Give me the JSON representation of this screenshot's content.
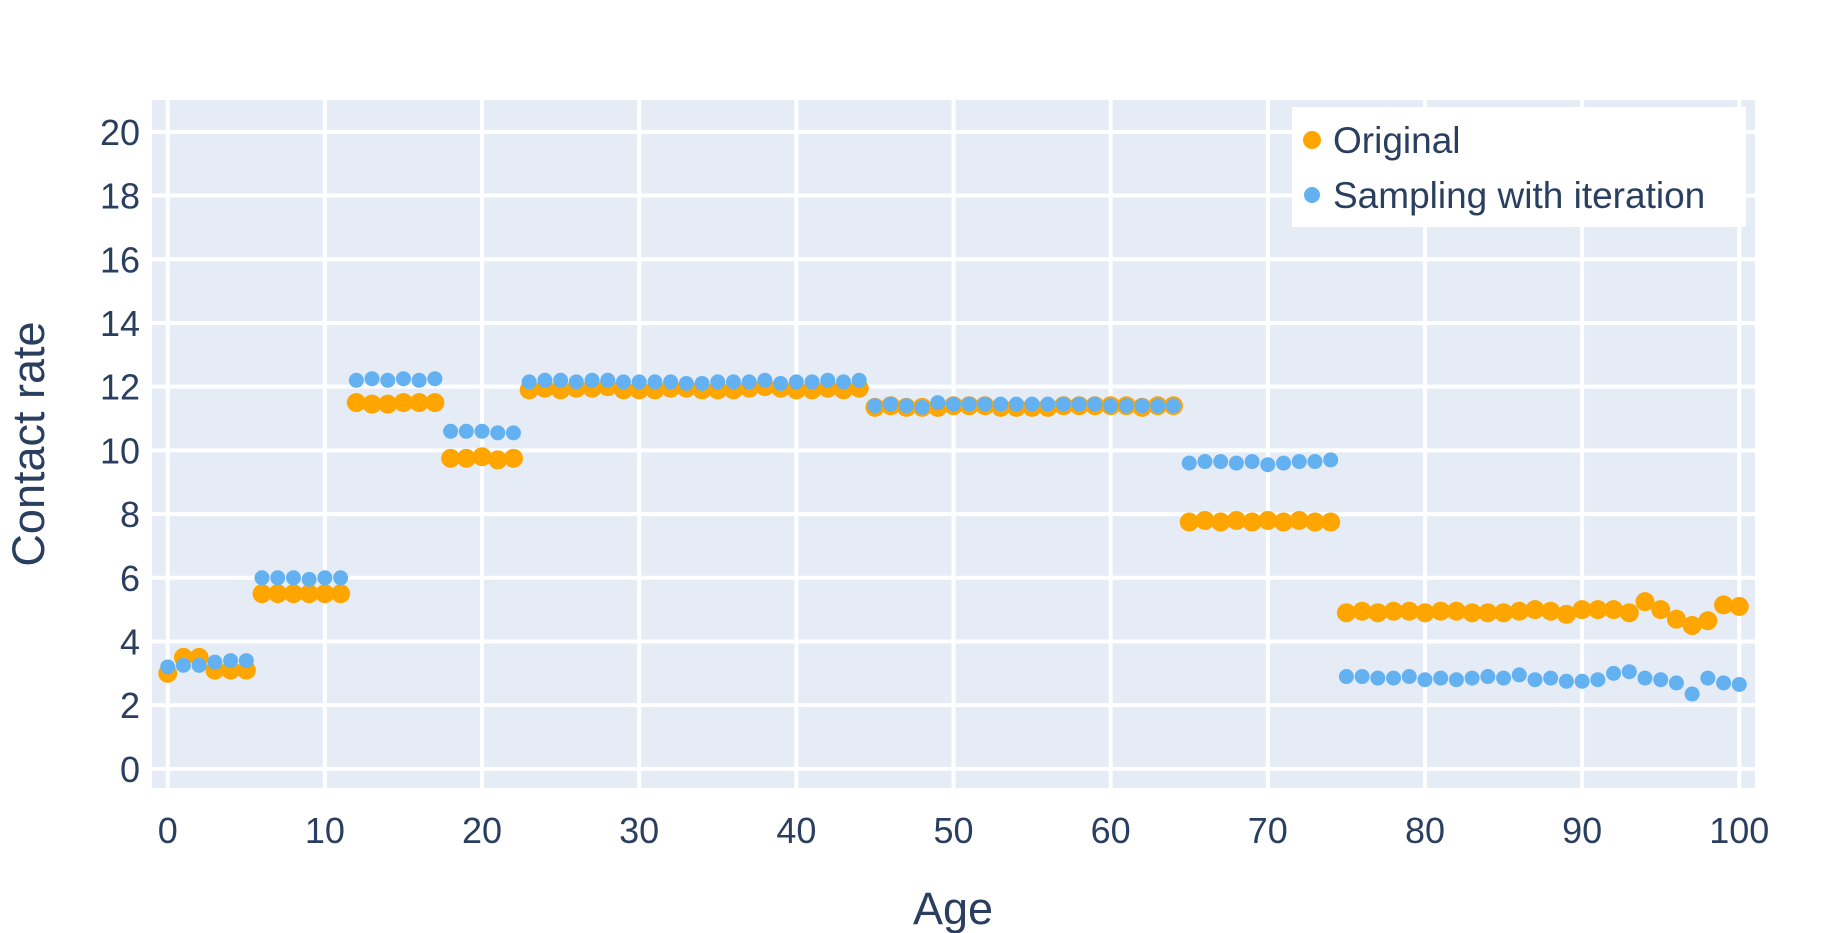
{
  "chart_data": {
    "type": "scatter",
    "xlabel": "Age",
    "ylabel": "Contact rate",
    "xlim": [
      -1,
      101
    ],
    "ylim": [
      -0.6,
      21
    ],
    "xticks": [
      0,
      10,
      20,
      30,
      40,
      50,
      60,
      70,
      80,
      90,
      100
    ],
    "yticks": [
      0,
      2,
      4,
      6,
      8,
      10,
      12,
      14,
      16,
      18,
      20
    ],
    "grid": true,
    "legend_position": "top-right",
    "colors": {
      "plot_bg": "#e5ecf6",
      "grid": "#ffffff",
      "text": "#2a3f5f"
    },
    "series": [
      {
        "name": "Original",
        "color": "#ffa500",
        "x": [
          0,
          1,
          2,
          3,
          4,
          5,
          6,
          7,
          8,
          9,
          10,
          11,
          12,
          13,
          14,
          15,
          16,
          17,
          18,
          19,
          20,
          21,
          22,
          23,
          24,
          25,
          26,
          27,
          28,
          29,
          30,
          31,
          32,
          33,
          34,
          35,
          36,
          37,
          38,
          39,
          40,
          41,
          42,
          43,
          44,
          45,
          46,
          47,
          48,
          49,
          50,
          51,
          52,
          53,
          54,
          55,
          56,
          57,
          58,
          59,
          60,
          61,
          62,
          63,
          64,
          65,
          66,
          67,
          68,
          69,
          70,
          71,
          72,
          73,
          74,
          75,
          76,
          77,
          78,
          79,
          80,
          81,
          82,
          83,
          84,
          85,
          86,
          87,
          88,
          89,
          90,
          91,
          92,
          93,
          94,
          95,
          96,
          97,
          98,
          99,
          100
        ],
        "y": [
          3.0,
          3.5,
          3.5,
          3.1,
          3.1,
          3.1,
          5.5,
          5.5,
          5.5,
          5.5,
          5.5,
          5.5,
          11.5,
          11.45,
          11.45,
          11.5,
          11.5,
          11.5,
          9.75,
          9.75,
          9.8,
          9.7,
          9.75,
          11.9,
          11.95,
          11.9,
          11.95,
          11.95,
          12.0,
          11.9,
          11.9,
          11.9,
          11.95,
          11.95,
          11.9,
          11.9,
          11.9,
          11.95,
          12.0,
          11.95,
          11.9,
          11.9,
          11.95,
          11.9,
          11.95,
          11.35,
          11.4,
          11.35,
          11.35,
          11.35,
          11.4,
          11.4,
          11.4,
          11.35,
          11.35,
          11.35,
          11.35,
          11.4,
          11.4,
          11.4,
          11.4,
          11.4,
          11.35,
          11.4,
          11.4,
          7.75,
          7.8,
          7.75,
          7.8,
          7.75,
          7.8,
          7.75,
          7.8,
          7.75,
          7.75,
          4.9,
          4.95,
          4.9,
          4.95,
          4.95,
          4.9,
          4.95,
          4.95,
          4.9,
          4.9,
          4.9,
          4.95,
          5.0,
          4.95,
          4.85,
          5.0,
          5.0,
          5.0,
          4.9,
          5.25,
          5.0,
          4.7,
          4.5,
          4.65,
          5.15,
          5.1
        ]
      },
      {
        "name": "Sampling with iteration",
        "color": "#64b1f2",
        "x": [
          0,
          1,
          2,
          3,
          4,
          5,
          6,
          7,
          8,
          9,
          10,
          11,
          12,
          13,
          14,
          15,
          16,
          17,
          18,
          19,
          20,
          21,
          22,
          23,
          24,
          25,
          26,
          27,
          28,
          29,
          30,
          31,
          32,
          33,
          34,
          35,
          36,
          37,
          38,
          39,
          40,
          41,
          42,
          43,
          44,
          45,
          46,
          47,
          48,
          49,
          50,
          51,
          52,
          53,
          54,
          55,
          56,
          57,
          58,
          59,
          60,
          61,
          62,
          63,
          64,
          65,
          66,
          67,
          68,
          69,
          70,
          71,
          72,
          73,
          74,
          75,
          76,
          77,
          78,
          79,
          80,
          81,
          82,
          83,
          84,
          85,
          86,
          87,
          88,
          89,
          90,
          91,
          92,
          93,
          94,
          95,
          96,
          97,
          98,
          99,
          100
        ],
        "y": [
          3.2,
          3.25,
          3.25,
          3.35,
          3.4,
          3.4,
          6.0,
          6.0,
          6.0,
          5.95,
          6.0,
          6.0,
          12.2,
          12.25,
          12.2,
          12.25,
          12.2,
          12.25,
          10.6,
          10.6,
          10.6,
          10.55,
          10.55,
          12.15,
          12.2,
          12.2,
          12.15,
          12.2,
          12.2,
          12.15,
          12.15,
          12.15,
          12.15,
          12.1,
          12.1,
          12.15,
          12.15,
          12.15,
          12.2,
          12.1,
          12.15,
          12.15,
          12.2,
          12.15,
          12.2,
          11.4,
          11.45,
          11.4,
          11.35,
          11.5,
          11.45,
          11.45,
          11.45,
          11.45,
          11.45,
          11.45,
          11.45,
          11.45,
          11.45,
          11.45,
          11.4,
          11.4,
          11.4,
          11.4,
          11.4,
          9.6,
          9.65,
          9.65,
          9.6,
          9.65,
          9.55,
          9.6,
          9.65,
          9.65,
          9.7,
          2.9,
          2.9,
          2.85,
          2.85,
          2.9,
          2.8,
          2.85,
          2.8,
          2.85,
          2.9,
          2.85,
          2.95,
          2.8,
          2.85,
          2.75,
          2.75,
          2.8,
          3.0,
          3.05,
          2.85,
          2.8,
          2.7,
          2.35,
          2.85,
          2.7,
          2.65
        ]
      }
    ]
  }
}
